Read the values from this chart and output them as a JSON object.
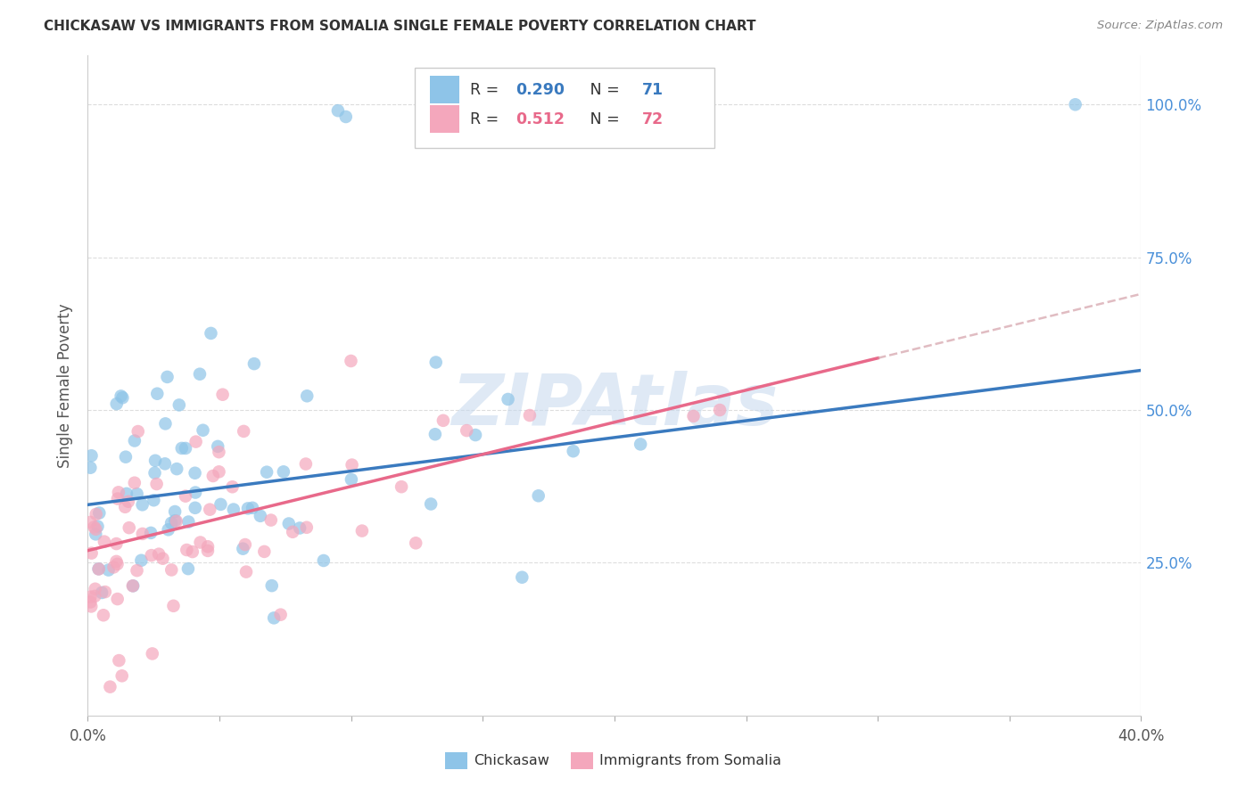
{
  "title": "CHICKASAW VS IMMIGRANTS FROM SOMALIA SINGLE FEMALE POVERTY CORRELATION CHART",
  "source": "Source: ZipAtlas.com",
  "ylabel": "Single Female Poverty",
  "y_tick_vals": [
    0.25,
    0.5,
    0.75,
    1.0
  ],
  "y_tick_labels": [
    "25.0%",
    "50.0%",
    "75.0%",
    "100.0%"
  ],
  "x_tick_vals": [
    0.0,
    0.05,
    0.1,
    0.15,
    0.2,
    0.25,
    0.3,
    0.35,
    0.4
  ],
  "x_tick_labels": [
    "0.0%",
    "",
    "",
    "",
    "",
    "",
    "",
    "",
    "40.0%"
  ],
  "legend_label1": "Chickasaw",
  "legend_label2": "Immigrants from Somalia",
  "R1": "0.290",
  "N1": "71",
  "R2": "0.512",
  "N2": "72",
  "color_blue": "#8ec4e8",
  "color_pink": "#f4a7bc",
  "color_line_blue": "#3a7abf",
  "color_line_pink": "#e8698a",
  "color_dashed": "#d4a0a8",
  "watermark": "ZIPAtlas",
  "xlim": [
    0.0,
    0.4
  ],
  "ylim": [
    0.0,
    1.08
  ],
  "blue_intercept": 0.345,
  "blue_slope": 0.55,
  "pink_intercept": 0.27,
  "pink_slope": 1.05
}
